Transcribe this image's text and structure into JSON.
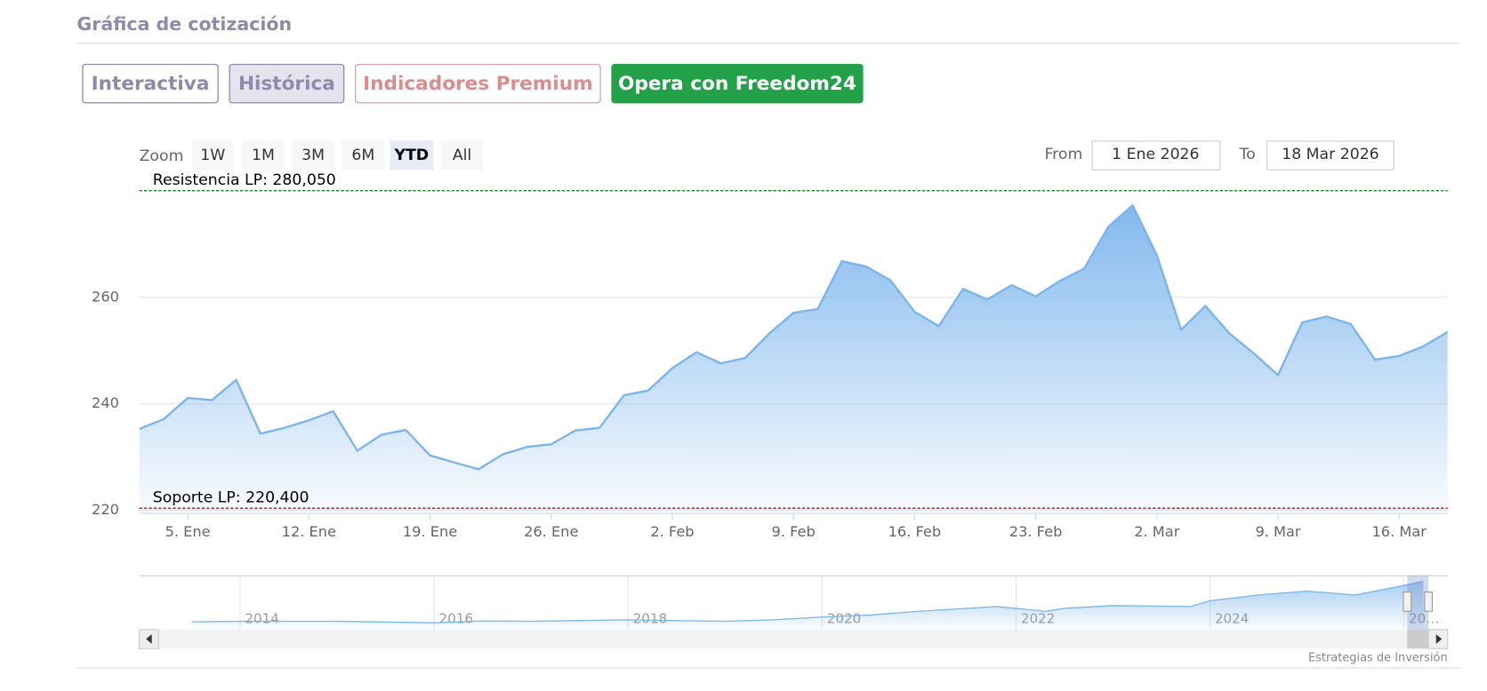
{
  "header": {
    "title": "Gráfica de cotización"
  },
  "buttons": [
    "Interactiva",
    "Histórica",
    "Indicadores Premium",
    "Opera con Freedom24"
  ],
  "range_selector": {
    "label": "Zoom",
    "buttons": [
      "1W",
      "1M",
      "3M",
      "6M",
      "YTD",
      "All"
    ],
    "selected": 4
  },
  "date_inputs": {
    "from_label": "From",
    "from": "1 Ene 2026",
    "to_label": "To",
    "to": "18 Mar 2026"
  },
  "chart_data": {
    "type": "area",
    "x": [
      "2026-01-01",
      "2026-01-02",
      "2026-01-05",
      "2026-01-06",
      "2026-01-07",
      "2026-01-08",
      "2026-01-09",
      "2026-01-12",
      "2026-01-13",
      "2026-01-14",
      "2026-01-15",
      "2026-01-16",
      "2026-01-19",
      "2026-01-20",
      "2026-01-21",
      "2026-01-22",
      "2026-01-23",
      "2026-01-26",
      "2026-01-27",
      "2026-01-28",
      "2026-01-29",
      "2026-01-30",
      "2026-02-02",
      "2026-02-03",
      "2026-02-04",
      "2026-02-05",
      "2026-02-06",
      "2026-02-09",
      "2026-02-10",
      "2026-02-11",
      "2026-02-12",
      "2026-02-13",
      "2026-02-16",
      "2026-02-17",
      "2026-02-18",
      "2026-02-19",
      "2026-02-20",
      "2026-02-23",
      "2026-02-24",
      "2026-02-25",
      "2026-02-26",
      "2026-02-27",
      "2026-03-02",
      "2026-03-03",
      "2026-03-04",
      "2026-03-05",
      "2026-03-06",
      "2026-03-09",
      "2026-03-10",
      "2026-03-11",
      "2026-03-12",
      "2026-03-13",
      "2026-03-16",
      "2026-03-17",
      "2026-03-18"
    ],
    "values": [
      235.3,
      237.1,
      241.1,
      240.7,
      244.5,
      234.4,
      235.5,
      236.9,
      238.6,
      231.2,
      234.2,
      235.1,
      230.3,
      229.0,
      227.7,
      230.5,
      231.9,
      232.4,
      235.0,
      235.5,
      241.6,
      242.5,
      246.7,
      249.7,
      247.6,
      248.6,
      253.2,
      257.1,
      257.8,
      266.8,
      265.8,
      263.2,
      257.3,
      254.6,
      261.6,
      259.6,
      262.3,
      260.2,
      263.1,
      265.4,
      273.3,
      277.3,
      267.9,
      253.9,
      258.4,
      253.2,
      249.5,
      245.4,
      255.3,
      256.4,
      255.0,
      248.3,
      249.0,
      250.8,
      253.5
    ],
    "color": "#7cb5ec",
    "ylim": [
      219.6,
      282.5
    ],
    "yticks": [
      220,
      240,
      260
    ],
    "grid": true,
    "xticks": [
      {
        "value": "2026-01-05",
        "label": "5. Ene"
      },
      {
        "value": "2026-01-12",
        "label": "12. Ene"
      },
      {
        "value": "2026-01-19",
        "label": "19. Ene"
      },
      {
        "value": "2026-01-26",
        "label": "26. Ene"
      },
      {
        "value": "2026-02-02",
        "label": "2. Feb"
      },
      {
        "value": "2026-02-09",
        "label": "9. Feb"
      },
      {
        "value": "2026-02-16",
        "label": "16. Feb"
      },
      {
        "value": "2026-02-23",
        "label": "23. Feb"
      },
      {
        "value": "2026-03-02",
        "label": "2. Mar"
      },
      {
        "value": "2026-03-09",
        "label": "9. Mar"
      },
      {
        "value": "2026-03-16",
        "label": "16. Mar"
      }
    ],
    "plot_lines": [
      {
        "label": "Resistencia LP: 280,050",
        "value": 280.05,
        "color": "#1f7a1f"
      },
      {
        "label": "Soporte LP: 220,400",
        "value": 220.4,
        "color": "#8b1a1a"
      }
    ],
    "navigator": {
      "type": "area",
      "x": [
        2013.5,
        2014,
        2015,
        2016,
        2016.5,
        2017,
        2018,
        2019,
        2019.5,
        2020,
        2020.5,
        2021,
        2021.8,
        2022.3,
        2022.5,
        2023,
        2023.8,
        2024,
        2024.5,
        2025,
        2025.5,
        2026,
        2026.2
      ],
      "values": [
        41,
        44,
        44,
        36,
        46,
        44,
        52,
        44,
        52,
        67,
        78,
        98,
        124,
        98,
        114,
        129,
        124,
        155,
        186,
        207,
        186,
        238,
        259
      ],
      "xlim": [
        2012.96,
        2026.45
      ],
      "ylim": [
        0,
        290
      ],
      "xticks": [
        2014,
        2016,
        2018,
        2020,
        2022,
        2024,
        {
          "value": 2026,
          "label": "20…"
        }
      ]
    }
  },
  "credits": "Estrategias de Inversión"
}
